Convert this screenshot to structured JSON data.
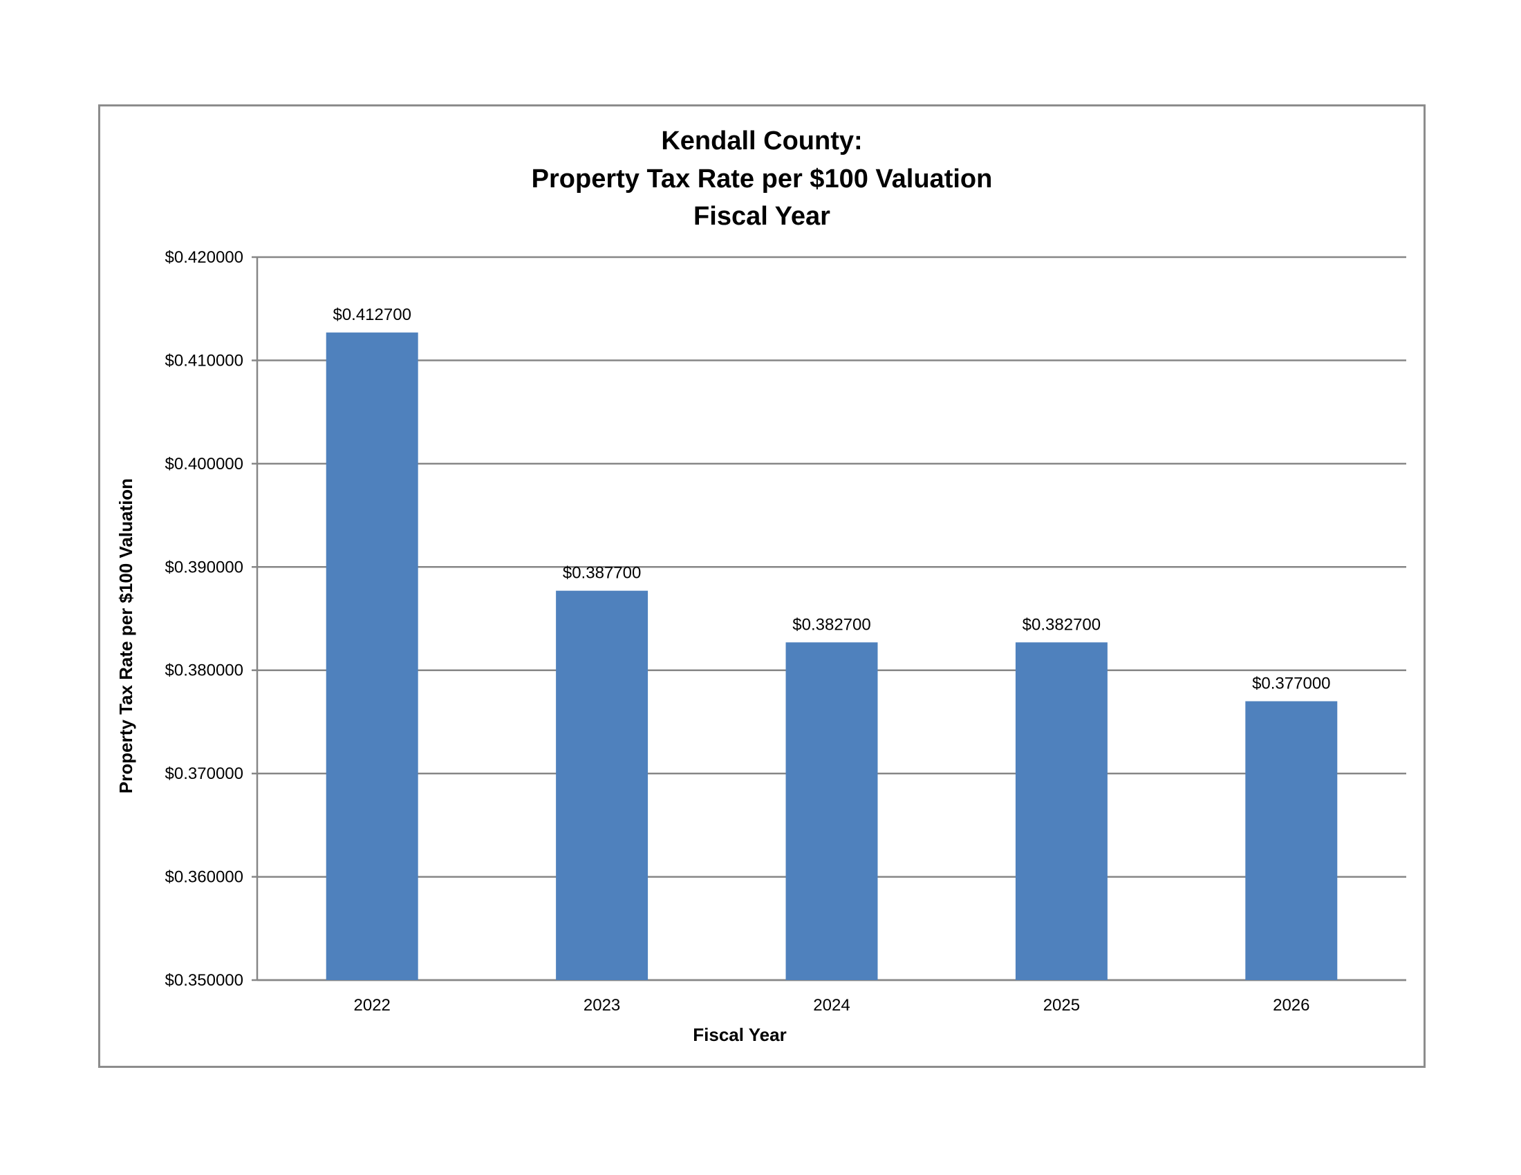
{
  "chart_data": {
    "type": "bar",
    "title_lines": [
      "Kendall County:",
      "Property Tax Rate per $100 Valuation",
      "Fiscal Year"
    ],
    "xlabel": "Fiscal Year",
    "ylabel": "Property Tax Rate per $100 Valuation",
    "categories": [
      "2022",
      "2023",
      "2024",
      "2025",
      "2026"
    ],
    "values": [
      0.4127,
      0.3877,
      0.3827,
      0.3827,
      0.377
    ],
    "data_labels": [
      "$0.412700",
      "$0.387700",
      "$0.382700",
      "$0.382700",
      "$0.377000"
    ],
    "ylim": [
      0.35,
      0.42
    ],
    "yticks": [
      0.35,
      0.36,
      0.37,
      0.38,
      0.39,
      0.4,
      0.41,
      0.42
    ],
    "ytick_labels": [
      "$0.350000",
      "$0.360000",
      "$0.370000",
      "$0.380000",
      "$0.390000",
      "$0.400000",
      "$0.410000",
      "$0.420000"
    ],
    "grid": true,
    "legend": "none",
    "bar_color": "#4f81bd",
    "grid_color": "#868686"
  }
}
